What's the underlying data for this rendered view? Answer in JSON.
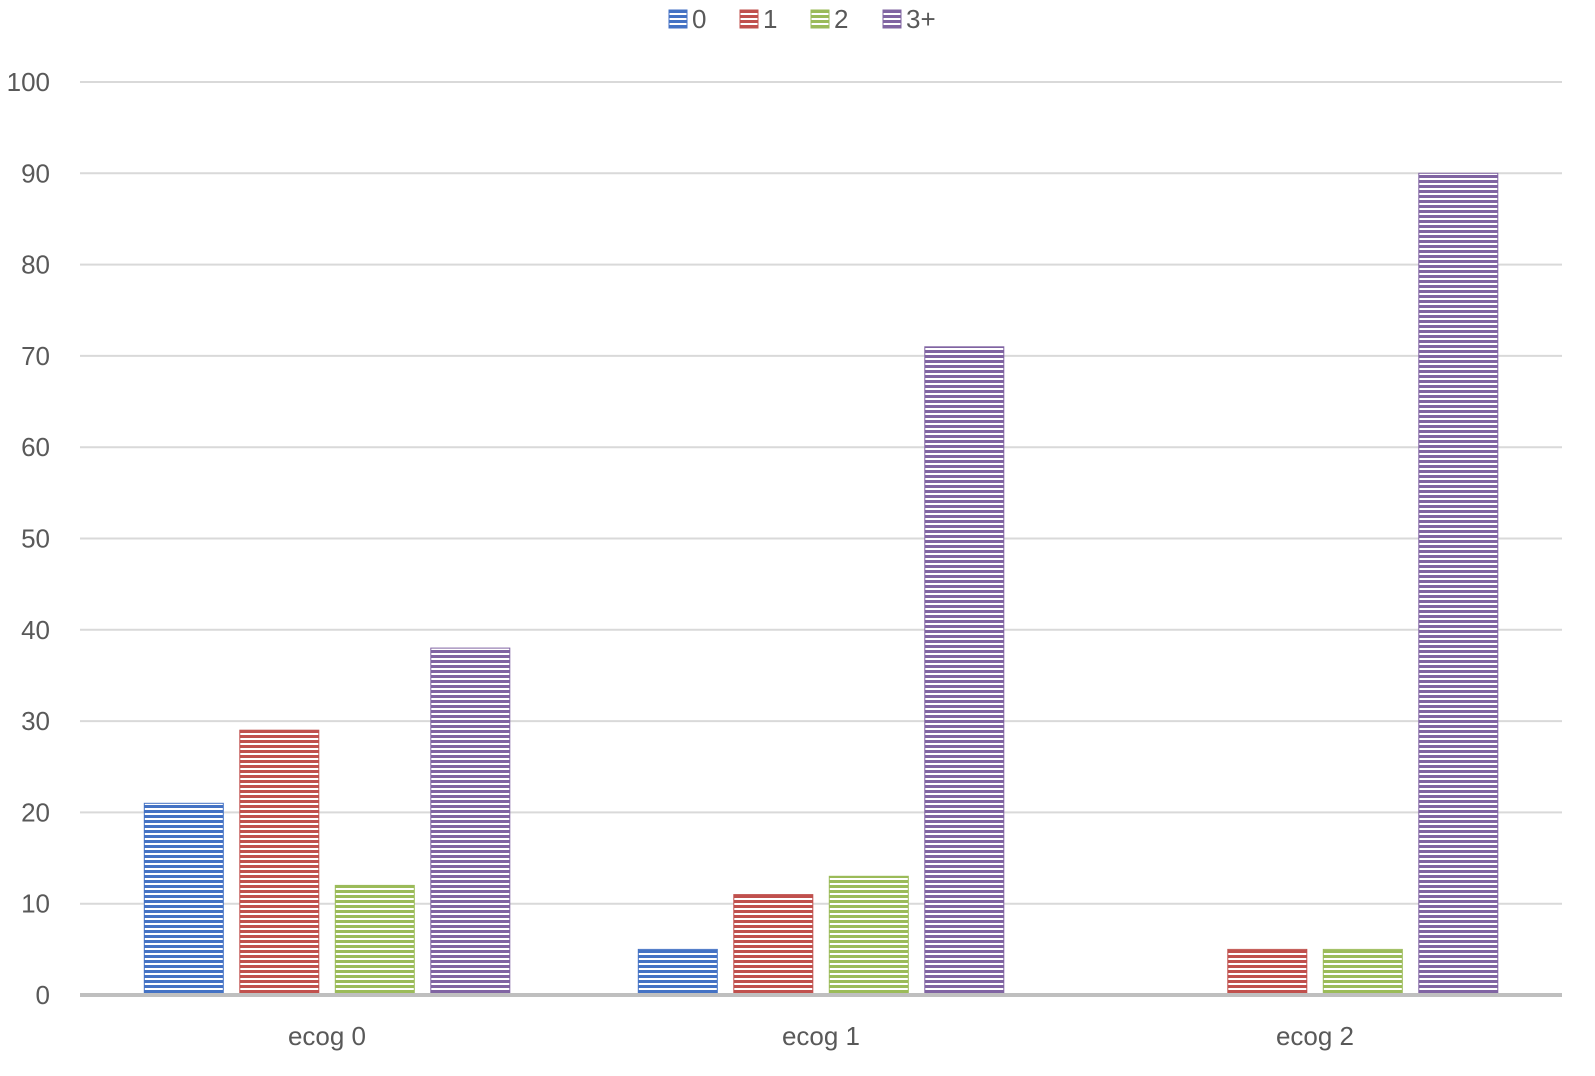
{
  "chart_data": {
    "type": "bar",
    "categories": [
      "ecog 0",
      "ecog 1",
      "ecog 2"
    ],
    "series": [
      {
        "name": "0",
        "values": [
          21,
          5,
          0
        ],
        "color": "#4472c4"
      },
      {
        "name": "1",
        "values": [
          29,
          11,
          5
        ],
        "color": "#c0504d"
      },
      {
        "name": "2",
        "values": [
          12,
          13,
          5
        ],
        "color": "#9bbb59"
      },
      {
        "name": "3+",
        "values": [
          38,
          71,
          90
        ],
        "color": "#8064a2"
      }
    ],
    "ylim": [
      0,
      100
    ],
    "yticks": [
      0,
      10,
      20,
      30,
      40,
      50,
      60,
      70,
      80,
      90,
      100
    ],
    "grid": true,
    "legend_position": "top-center",
    "bar_pattern": "horizontal-stripes"
  }
}
